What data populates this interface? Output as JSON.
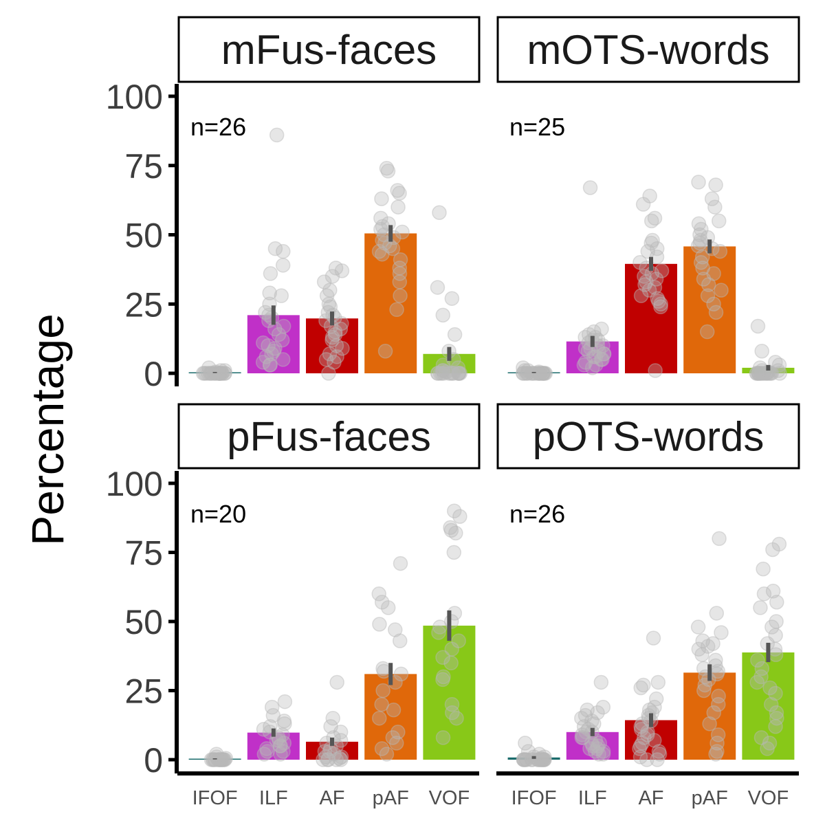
{
  "chart_data": {
    "type": "bar",
    "ylabel": "Percentage",
    "ylim": [
      0,
      100
    ],
    "yticks": [
      0,
      25,
      50,
      75,
      100
    ],
    "categories": [
      "IFOF",
      "ILF",
      "AF",
      "pAF",
      "VOF"
    ],
    "colors": {
      "IFOF": "#1a6b6b",
      "ILF": "#c030c8",
      "AF": "#c00000",
      "pAF": "#e0680a",
      "VOF": "#88c818",
      "points": "#b8b8b8",
      "errorbar": "#555555"
    },
    "panels": [
      {
        "title": "mFus-faces",
        "n_label": "n=26",
        "values": [
          0.3,
          21,
          19.8,
          50.5,
          7
        ],
        "errors": [
          0.2,
          3.5,
          2.5,
          3,
          2.5
        ],
        "points": [
          [
            0,
            0,
            0,
            0,
            0,
            0.5,
            0,
            0,
            1,
            0,
            0,
            0,
            0,
            2,
            0,
            0,
            0,
            0,
            0,
            0,
            1,
            0,
            0,
            0,
            0,
            0
          ],
          [
            86,
            45,
            44,
            39,
            36,
            29,
            28,
            25,
            22,
            21,
            20,
            19,
            17,
            16,
            14,
            12,
            11,
            10,
            9,
            8,
            7,
            6,
            5,
            4,
            3,
            3
          ],
          [
            38,
            37,
            35,
            33,
            30,
            28,
            25,
            24,
            22,
            21,
            20,
            19,
            18,
            17,
            16,
            15,
            14,
            13,
            12,
            10,
            9,
            7,
            6,
            5,
            4,
            0
          ],
          [
            74,
            73,
            66,
            65,
            63,
            60,
            56,
            54,
            53,
            52,
            51,
            50,
            49,
            48,
            46,
            45,
            43,
            41,
            38,
            36,
            33,
            28,
            23,
            8,
            44,
            47
          ],
          [
            58,
            31,
            27,
            21,
            14,
            8,
            5,
            3,
            2,
            1,
            0.5,
            0,
            0,
            0,
            0,
            0,
            0,
            0,
            0,
            0,
            0,
            0,
            0,
            0,
            0,
            1
          ]
        ]
      },
      {
        "title": "mOTS-words",
        "n_label": "n=25",
        "values": [
          0.3,
          11.5,
          39.5,
          45.8,
          2
        ],
        "errors": [
          0.2,
          2,
          2.5,
          2.5,
          1
        ],
        "points": [
          [
            0,
            0,
            0,
            0,
            0,
            0.5,
            0,
            0,
            1,
            0,
            0,
            0,
            0,
            2,
            0,
            0,
            0,
            0,
            0,
            0,
            1,
            0,
            0,
            0,
            0
          ],
          [
            67,
            16,
            15,
            14,
            13,
            12,
            11,
            10,
            9,
            9,
            8,
            7,
            7,
            6,
            5,
            5,
            4,
            3,
            3,
            2,
            6,
            8,
            10,
            12,
            13
          ],
          [
            64,
            61,
            56,
            55,
            48,
            47,
            45,
            44,
            42,
            40,
            38,
            36,
            35,
            34,
            33,
            32,
            31,
            30,
            28,
            27,
            26,
            25,
            24,
            1,
            37
          ],
          [
            69,
            68,
            63,
            60,
            55,
            54,
            52,
            50,
            48,
            47,
            46,
            45,
            44,
            42,
            40,
            38,
            36,
            34,
            32,
            30,
            28,
            25,
            22,
            15,
            49
          ],
          [
            17,
            8,
            4,
            3,
            2,
            1,
            0.5,
            0,
            0,
            0,
            0,
            0,
            0,
            0,
            0,
            0,
            0,
            0,
            0,
            0,
            0,
            0,
            0,
            0,
            1
          ]
        ]
      },
      {
        "title": "pFus-faces",
        "n_label": "n=20",
        "values": [
          0.3,
          9.8,
          6.5,
          31,
          48.5
        ],
        "errors": [
          0.2,
          1.5,
          1.5,
          4,
          5.5
        ],
        "points": [
          [
            0,
            0,
            0,
            0,
            0,
            0.5,
            0,
            0,
            1,
            0,
            0,
            0,
            0,
            2,
            0,
            0,
            0,
            0,
            0,
            0
          ],
          [
            21,
            19,
            16,
            14,
            13,
            12,
            11,
            10,
            9,
            8,
            7,
            6,
            5,
            4,
            3,
            2,
            2,
            3,
            5,
            7
          ],
          [
            28,
            15,
            12,
            10,
            8,
            7,
            6,
            5,
            4,
            3,
            3,
            2,
            1,
            1,
            0.5,
            0,
            0,
            0,
            0,
            0
          ],
          [
            71,
            60,
            57,
            55,
            49,
            47,
            43,
            33,
            32,
            31,
            28,
            25,
            20,
            18,
            15,
            10,
            8,
            6,
            4,
            2
          ],
          [
            90,
            88,
            84,
            83,
            82,
            75,
            53,
            50,
            48,
            46,
            40,
            37,
            35,
            30,
            29,
            20,
            17,
            15,
            8,
            43
          ]
        ]
      },
      {
        "title": "pOTS-words",
        "n_label": "n=26",
        "values": [
          0.8,
          10,
          14.3,
          31.5,
          38.8
        ],
        "errors": [
          0.5,
          1.5,
          2.5,
          3,
          3.5
        ],
        "points": [
          [
            0,
            0,
            0,
            0,
            0,
            0.5,
            0,
            0,
            1,
            0,
            0,
            0,
            0,
            2,
            0,
            0,
            0,
            0,
            0,
            6,
            1,
            0,
            0,
            0,
            3,
            0
          ],
          [
            28,
            19,
            18,
            16,
            15,
            14,
            13,
            12,
            11,
            10,
            10,
            9,
            8,
            8,
            7,
            6,
            6,
            5,
            5,
            4,
            4,
            3,
            3,
            2,
            2,
            17
          ],
          [
            44,
            28,
            27,
            26,
            22,
            19,
            18,
            17,
            16,
            14,
            13,
            12,
            11,
            10,
            9,
            8,
            7,
            6,
            5,
            4,
            3,
            2,
            1,
            0,
            0,
            15
          ],
          [
            80,
            53,
            48,
            46,
            43,
            42,
            41,
            40,
            38,
            36,
            34,
            33,
            32,
            31,
            30,
            29,
            27,
            25,
            23,
            20,
            17,
            13,
            9,
            6,
            3,
            2
          ],
          [
            78,
            76,
            69,
            61,
            60,
            57,
            55,
            50,
            48,
            45,
            42,
            40,
            38,
            36,
            33,
            30,
            28,
            26,
            24,
            20,
            17,
            15,
            12,
            8,
            6,
            4
          ]
        ]
      }
    ]
  }
}
